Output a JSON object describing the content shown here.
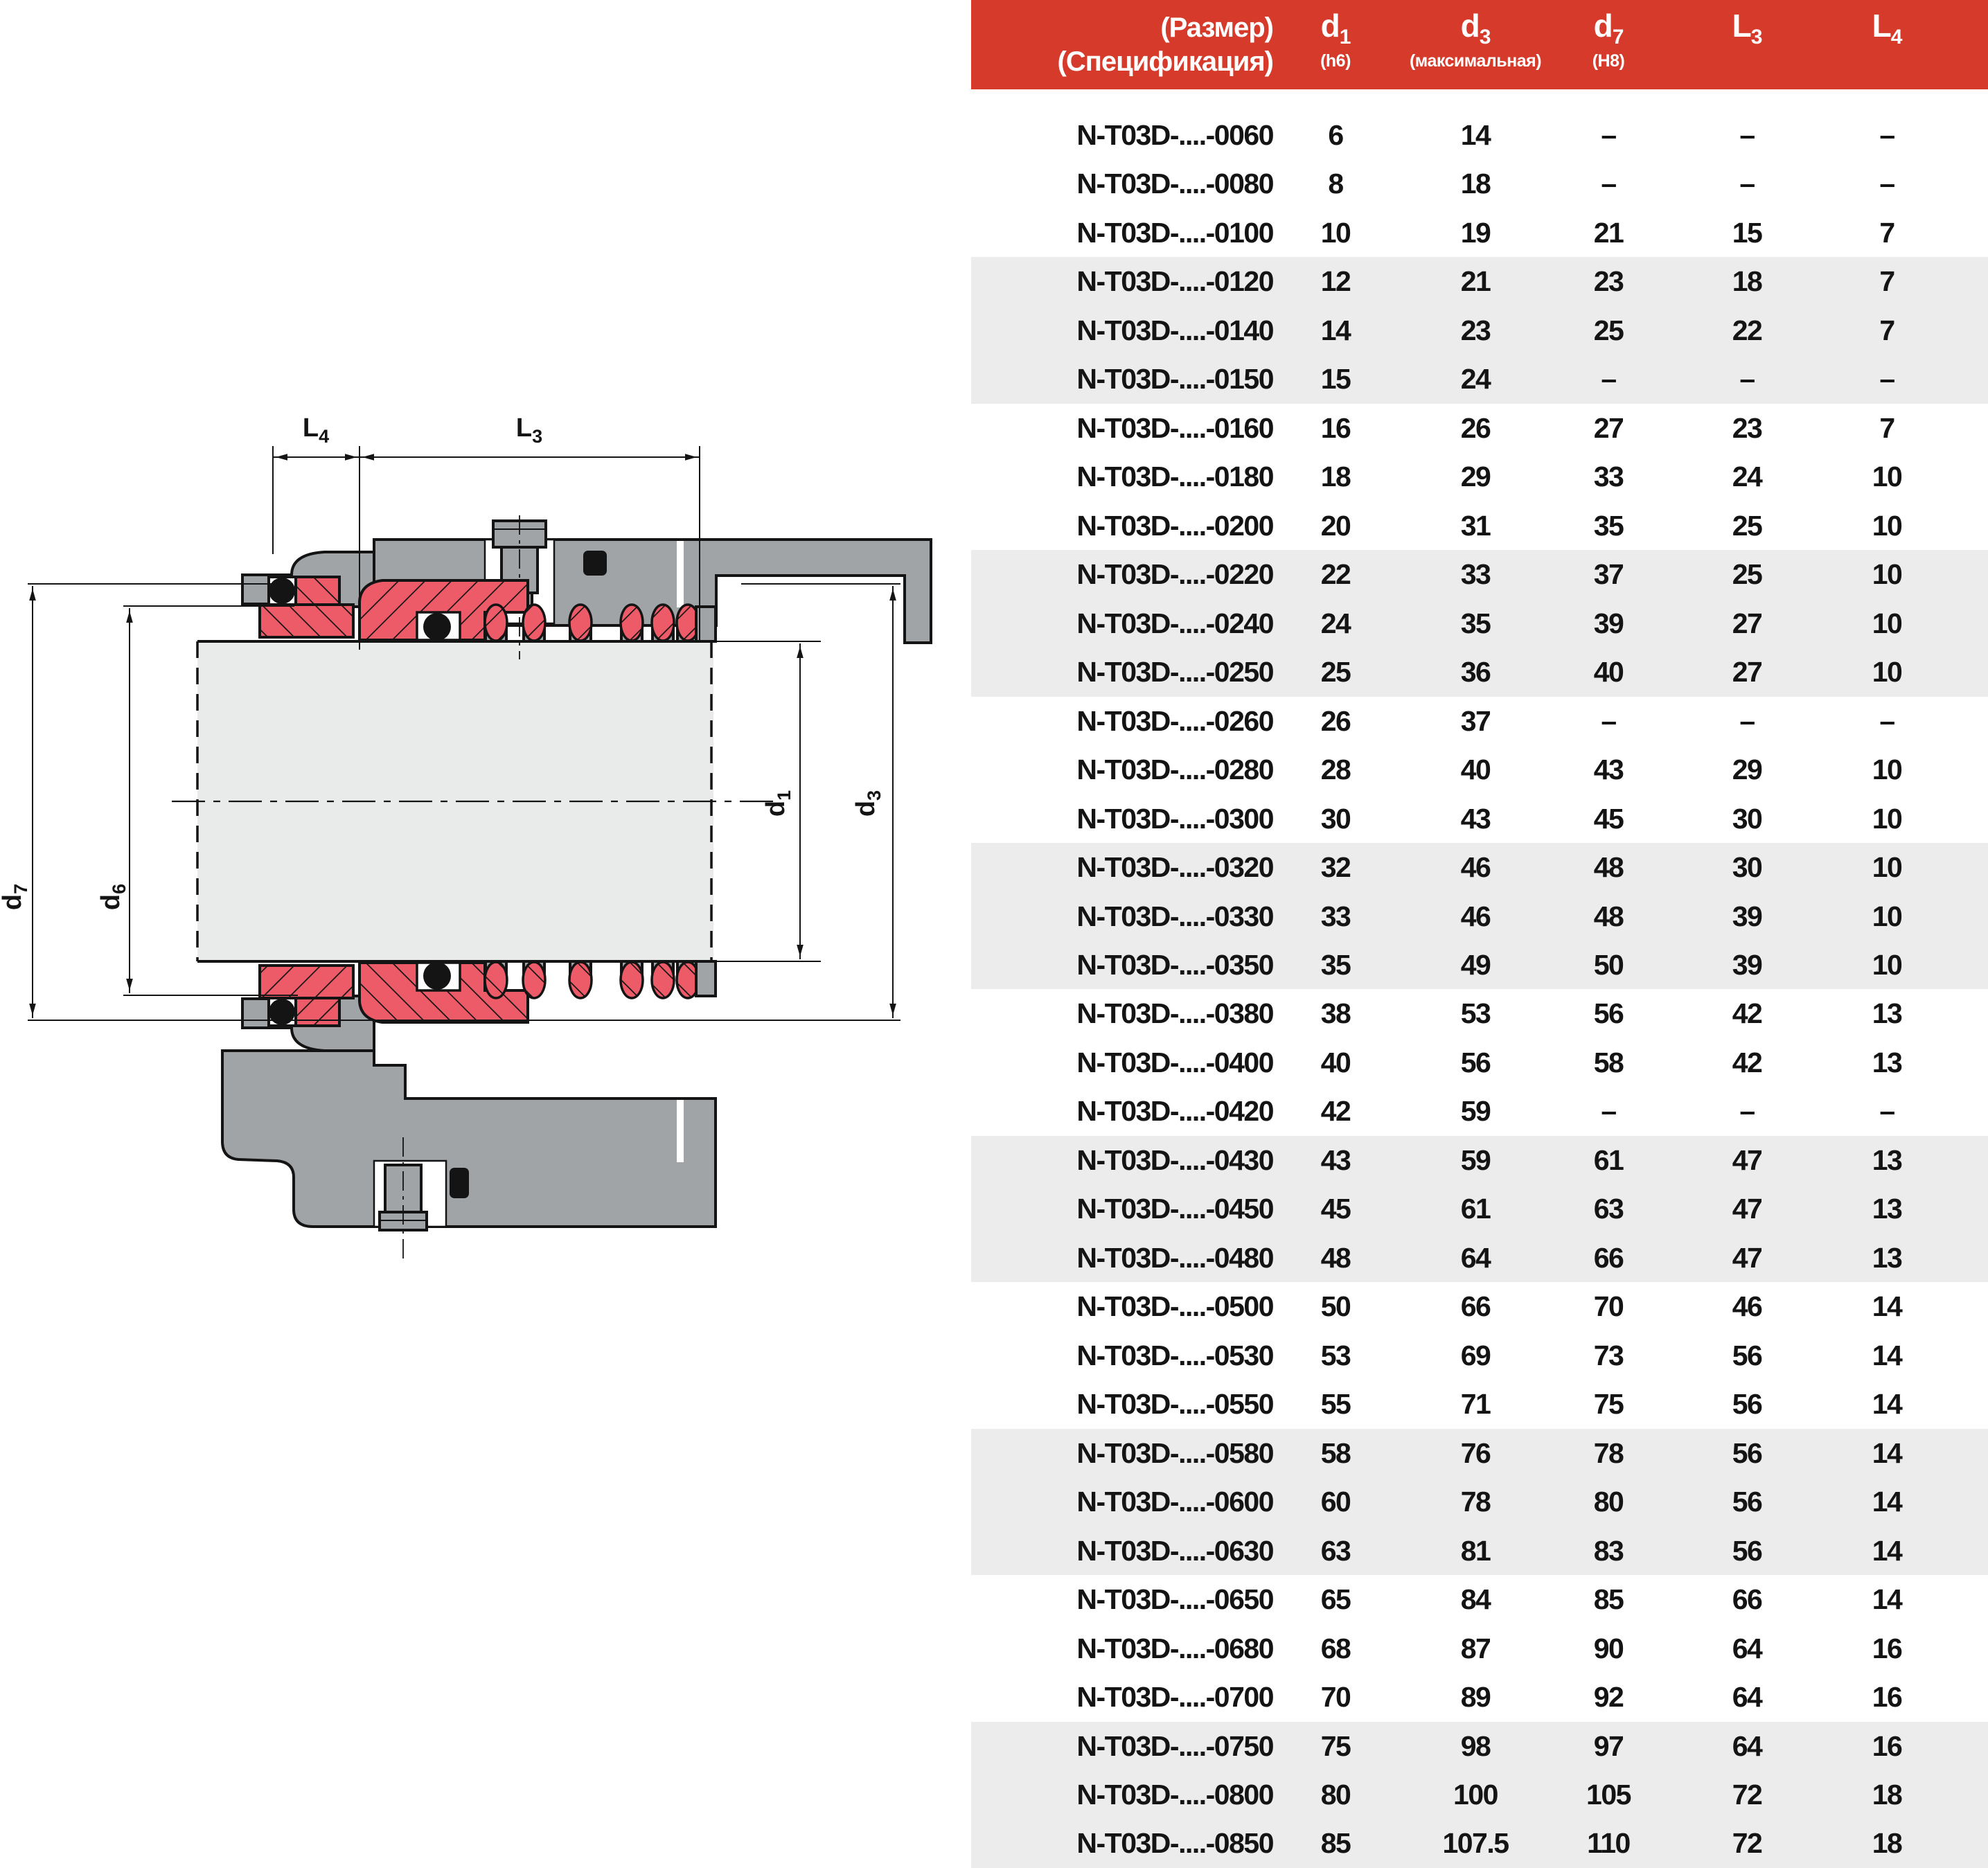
{
  "header": {
    "size_line1": "(Размер)",
    "size_line2": "(Спецификация)",
    "columns": [
      {
        "main": "d",
        "sub": "1",
        "caption": "(h6)"
      },
      {
        "main": "d",
        "sub": "3",
        "caption": "(максимальная)"
      },
      {
        "main": "d",
        "sub": "7",
        "caption": "(H8)"
      },
      {
        "main": "L",
        "sub": "3",
        "caption": ""
      },
      {
        "main": "L",
        "sub": "4",
        "caption": ""
      }
    ]
  },
  "rows": [
    {
      "name": "N-T03D-....-0060",
      "d1": "6",
      "d3": "14",
      "d7": "–",
      "l3": "–",
      "l4": "–"
    },
    {
      "name": "N-T03D-....-0080",
      "d1": "8",
      "d3": "18",
      "d7": "–",
      "l3": "–",
      "l4": "–"
    },
    {
      "name": "N-T03D-....-0100",
      "d1": "10",
      "d3": "19",
      "d7": "21",
      "l3": "15",
      "l4": "7"
    },
    {
      "name": "N-T03D-....-0120",
      "d1": "12",
      "d3": "21",
      "d7": "23",
      "l3": "18",
      "l4": "7"
    },
    {
      "name": "N-T03D-....-0140",
      "d1": "14",
      "d3": "23",
      "d7": "25",
      "l3": "22",
      "l4": "7"
    },
    {
      "name": "N-T03D-....-0150",
      "d1": "15",
      "d3": "24",
      "d7": "–",
      "l3": "–",
      "l4": "–"
    },
    {
      "name": "N-T03D-....-0160",
      "d1": "16",
      "d3": "26",
      "d7": "27",
      "l3": "23",
      "l4": "7"
    },
    {
      "name": "N-T03D-....-0180",
      "d1": "18",
      "d3": "29",
      "d7": "33",
      "l3": "24",
      "l4": "10"
    },
    {
      "name": "N-T03D-....-0200",
      "d1": "20",
      "d3": "31",
      "d7": "35",
      "l3": "25",
      "l4": "10"
    },
    {
      "name": "N-T03D-....-0220",
      "d1": "22",
      "d3": "33",
      "d7": "37",
      "l3": "25",
      "l4": "10"
    },
    {
      "name": "N-T03D-....-0240",
      "d1": "24",
      "d3": "35",
      "d7": "39",
      "l3": "27",
      "l4": "10"
    },
    {
      "name": "N-T03D-....-0250",
      "d1": "25",
      "d3": "36",
      "d7": "40",
      "l3": "27",
      "l4": "10"
    },
    {
      "name": "N-T03D-....-0260",
      "d1": "26",
      "d3": "37",
      "d7": "–",
      "l3": "–",
      "l4": "–"
    },
    {
      "name": "N-T03D-....-0280",
      "d1": "28",
      "d3": "40",
      "d7": "43",
      "l3": "29",
      "l4": "10"
    },
    {
      "name": "N-T03D-....-0300",
      "d1": "30",
      "d3": "43",
      "d7": "45",
      "l3": "30",
      "l4": "10"
    },
    {
      "name": "N-T03D-....-0320",
      "d1": "32",
      "d3": "46",
      "d7": "48",
      "l3": "30",
      "l4": "10"
    },
    {
      "name": "N-T03D-....-0330",
      "d1": "33",
      "d3": "46",
      "d7": "48",
      "l3": "39",
      "l4": "10"
    },
    {
      "name": "N-T03D-....-0350",
      "d1": "35",
      "d3": "49",
      "d7": "50",
      "l3": "39",
      "l4": "10"
    },
    {
      "name": "N-T03D-....-0380",
      "d1": "38",
      "d3": "53",
      "d7": "56",
      "l3": "42",
      "l4": "13"
    },
    {
      "name": "N-T03D-....-0400",
      "d1": "40",
      "d3": "56",
      "d7": "58",
      "l3": "42",
      "l4": "13"
    },
    {
      "name": "N-T03D-....-0420",
      "d1": "42",
      "d3": "59",
      "d7": "–",
      "l3": "–",
      "l4": "–"
    },
    {
      "name": "N-T03D-....-0430",
      "d1": "43",
      "d3": "59",
      "d7": "61",
      "l3": "47",
      "l4": "13"
    },
    {
      "name": "N-T03D-....-0450",
      "d1": "45",
      "d3": "61",
      "d7": "63",
      "l3": "47",
      "l4": "13"
    },
    {
      "name": "N-T03D-....-0480",
      "d1": "48",
      "d3": "64",
      "d7": "66",
      "l3": "47",
      "l4": "13"
    },
    {
      "name": "N-T03D-....-0500",
      "d1": "50",
      "d3": "66",
      "d7": "70",
      "l3": "46",
      "l4": "14"
    },
    {
      "name": "N-T03D-....-0530",
      "d1": "53",
      "d3": "69",
      "d7": "73",
      "l3": "56",
      "l4": "14"
    },
    {
      "name": "N-T03D-....-0550",
      "d1": "55",
      "d3": "71",
      "d7": "75",
      "l3": "56",
      "l4": "14"
    },
    {
      "name": "N-T03D-....-0580",
      "d1": "58",
      "d3": "76",
      "d7": "78",
      "l3": "56",
      "l4": "14"
    },
    {
      "name": "N-T03D-....-0600",
      "d1": "60",
      "d3": "78",
      "d7": "80",
      "l3": "56",
      "l4": "14"
    },
    {
      "name": "N-T03D-....-0630",
      "d1": "63",
      "d3": "81",
      "d7": "83",
      "l3": "56",
      "l4": "14"
    },
    {
      "name": "N-T03D-....-0650",
      "d1": "65",
      "d3": "84",
      "d7": "85",
      "l3": "66",
      "l4": "14"
    },
    {
      "name": "N-T03D-....-0680",
      "d1": "68",
      "d3": "87",
      "d7": "90",
      "l3": "64",
      "l4": "16"
    },
    {
      "name": "N-T03D-....-0700",
      "d1": "70",
      "d3": "89",
      "d7": "92",
      "l3": "64",
      "l4": "16"
    },
    {
      "name": "N-T03D-....-0750",
      "d1": "75",
      "d3": "98",
      "d7": "97",
      "l3": "64",
      "l4": "16"
    },
    {
      "name": "N-T03D-....-0800",
      "d1": "80",
      "d3": "100",
      "d7": "105",
      "l3": "72",
      "l4": "18"
    },
    {
      "name": "N-T03D-....-0850",
      "d1": "85",
      "d3": "107.5",
      "d7": "110",
      "l3": "72",
      "l4": "18"
    }
  ],
  "diagram": {
    "labels": {
      "l4": {
        "main": "L",
        "sub": "4"
      },
      "l3": {
        "main": "L",
        "sub": "3"
      },
      "d7": {
        "main": "d",
        "sub": "7"
      },
      "d6": {
        "main": "d",
        "sub": "6"
      },
      "d1": {
        "main": "d",
        "sub": "1"
      },
      "d3": {
        "main": "d",
        "sub": "3"
      }
    }
  },
  "colors": {
    "header_red": "#d63a2a",
    "stripe": "#ececec",
    "ink": "#141414",
    "seal_red": "#ee5b68",
    "metal": "#a0a4a6",
    "shaft": "#e9ebeb"
  }
}
